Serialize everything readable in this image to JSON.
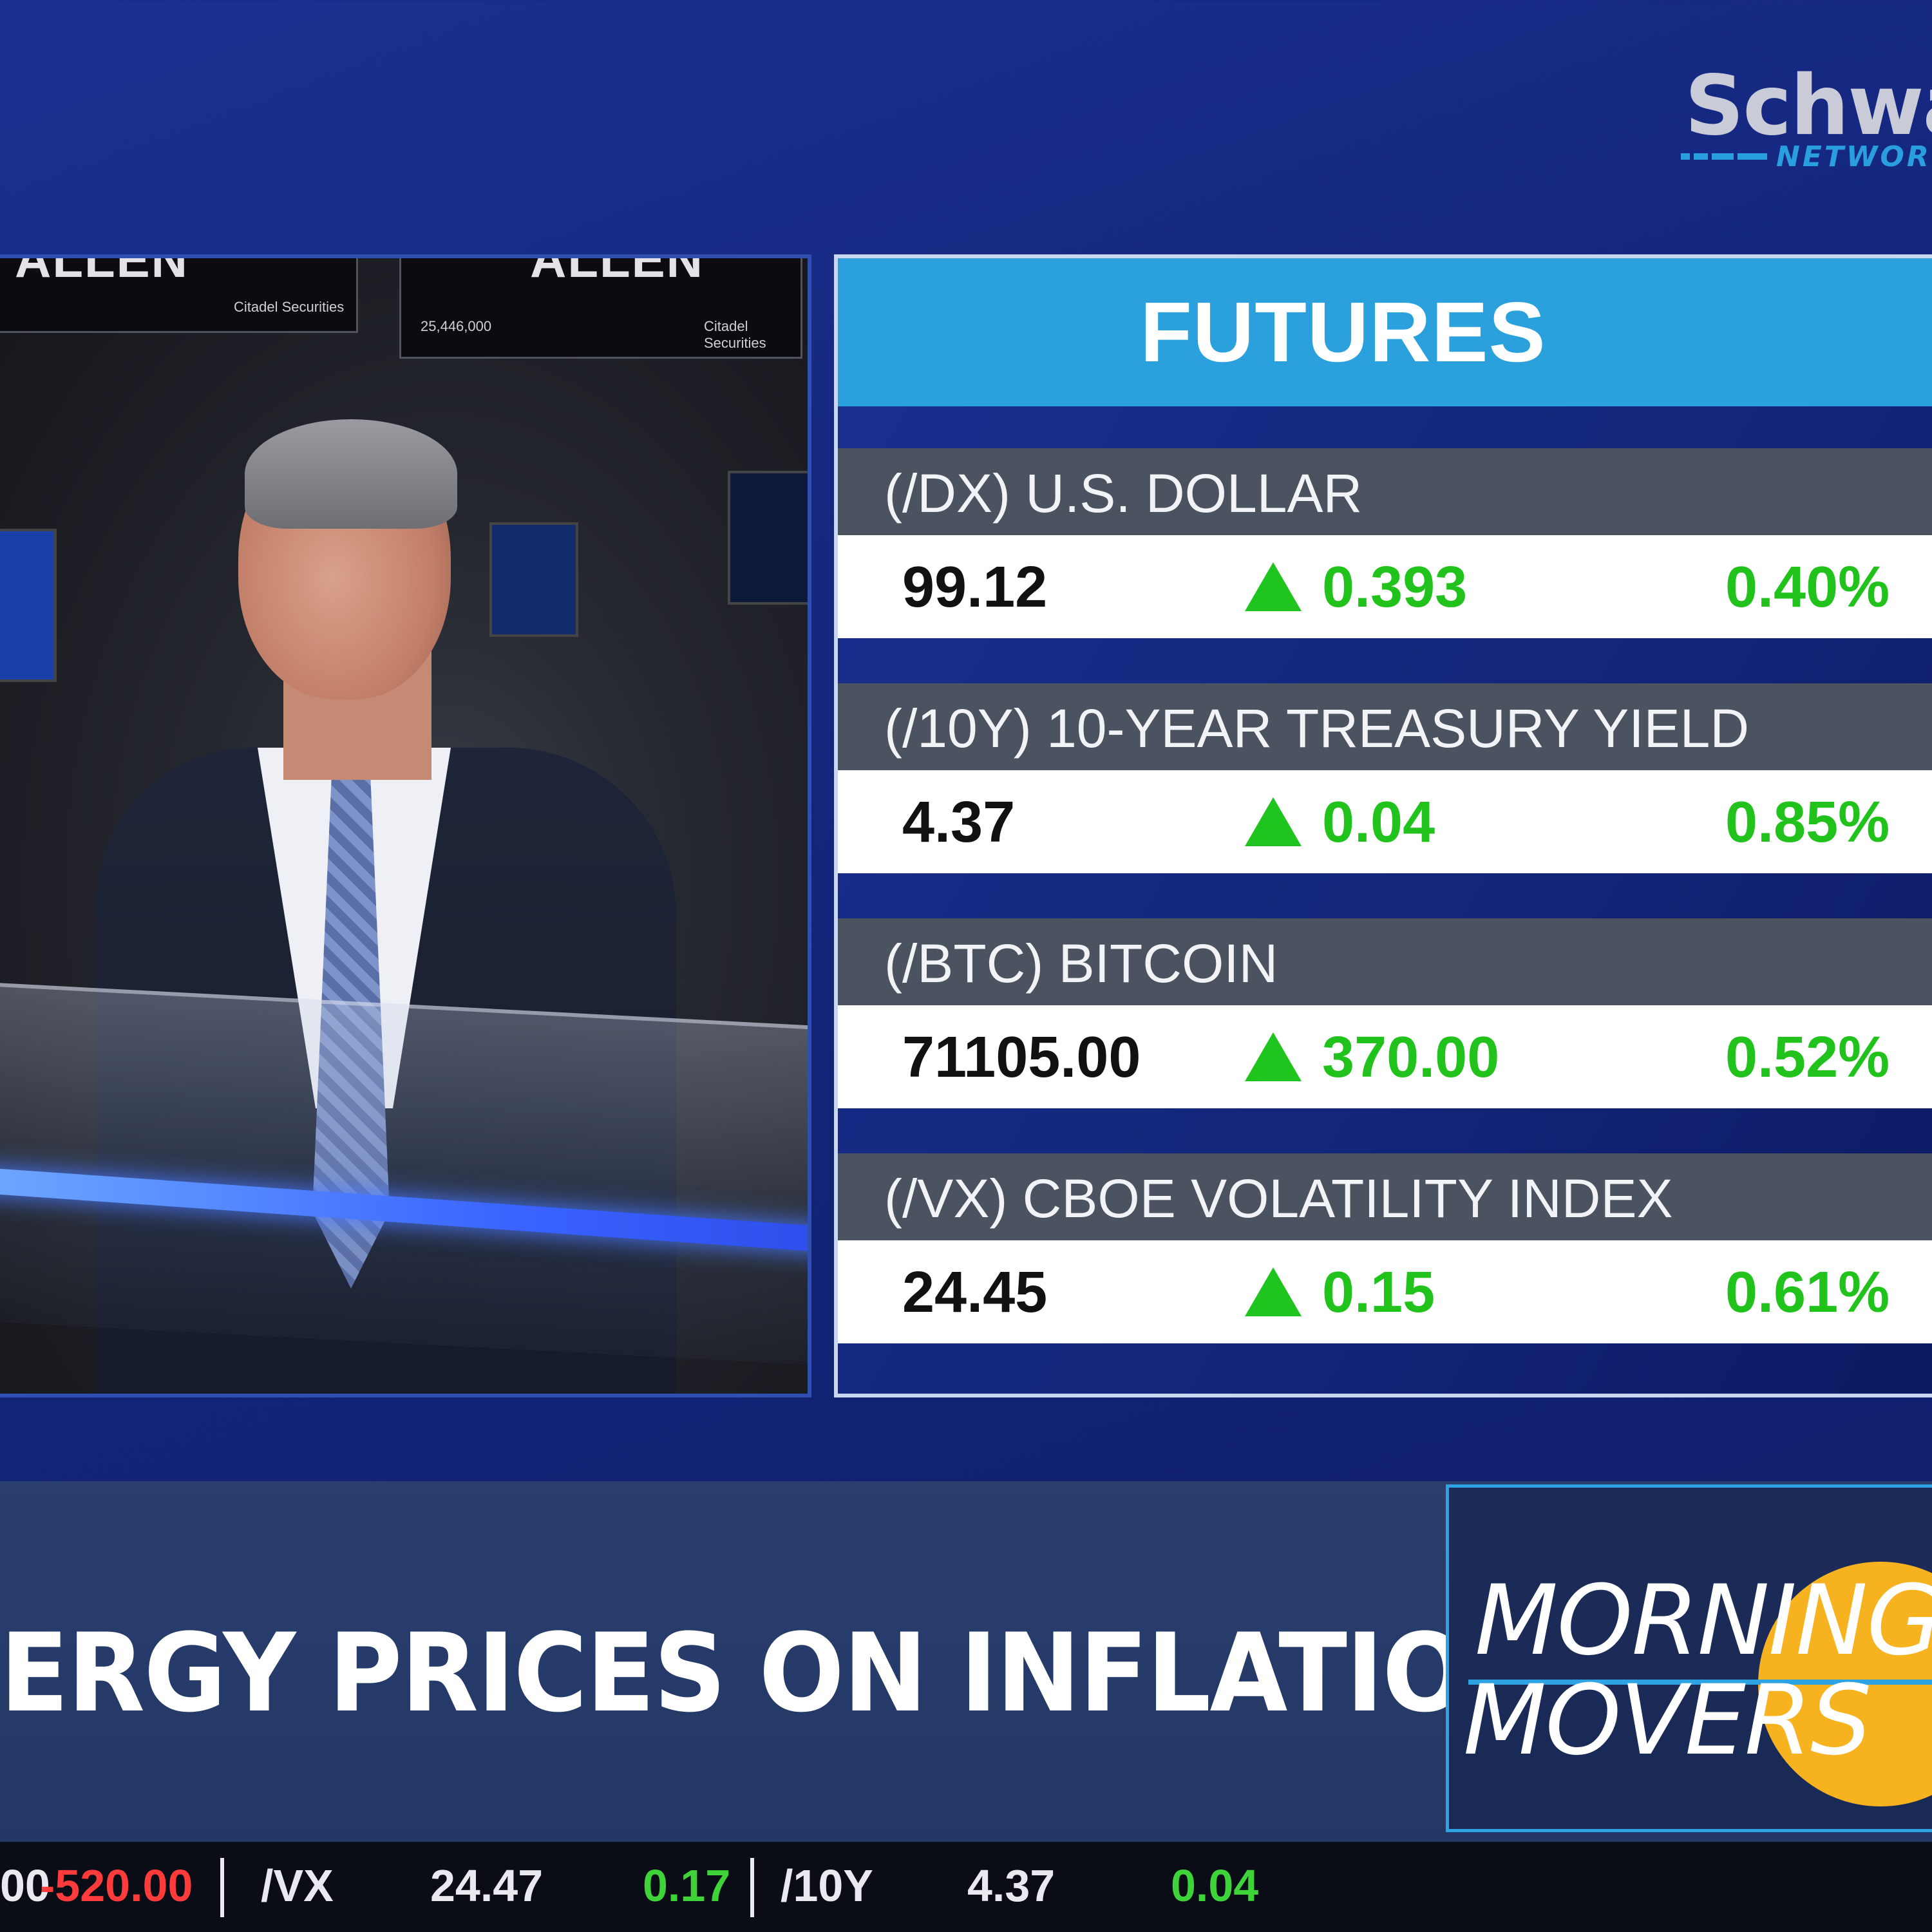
{
  "logo": {
    "word": "Schwab",
    "network": "NETWORK"
  },
  "video": {
    "signs": [
      "ALLEN",
      "ALLEN"
    ],
    "sign_number": "25,446,000",
    "sign_small": [
      "Citadel Securities",
      "Citadel Securities"
    ]
  },
  "futures": {
    "title": "FUTURES",
    "rows": [
      {
        "label": "(/DX) U.S. DOLLAR",
        "price": "99.12",
        "change": "0.393",
        "percent": "0.40%"
      },
      {
        "label": "(/10Y) 10-YEAR TREASURY YIELD",
        "price": "4.37",
        "change": "0.04",
        "percent": "0.85%"
      },
      {
        "label": "(/BTC) BITCOIN",
        "price": "71105.00",
        "change": "370.00",
        "percent": "0.52%"
      },
      {
        "label": "(/VX) CBOE VOLATILITY INDEX",
        "price": "24.45",
        "change": "0.15",
        "percent": "0.61%"
      }
    ],
    "up_color": "#21c21b",
    "arrow_icon": "triangle-up-icon"
  },
  "lower_third": {
    "headline": "ERGY PRICES ON INFLATION",
    "show_line1": "MORNING",
    "show_line2": "MOVERS"
  },
  "ticker": {
    "items": [
      {
        "part1": "00",
        "part2": "-520.00"
      },
      {
        "symbol": "/VX",
        "price": "24.47",
        "change": "0.17"
      },
      {
        "symbol": "/10Y",
        "price": "4.37",
        "change": "0.04"
      }
    ]
  }
}
